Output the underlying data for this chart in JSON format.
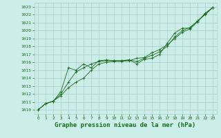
{
  "bg_color": "#cceee8",
  "grid_color": "#aacccc",
  "line_color": "#1a6b1a",
  "marker_color": "#1a6b1a",
  "title": "Graphe pression niveau de la mer (hPa)",
  "title_fontsize": 6.5,
  "xlim": [
    -0.5,
    23.5
  ],
  "ylim": [
    1009.5,
    1023.5
  ],
  "xticks": [
    0,
    1,
    2,
    3,
    4,
    5,
    6,
    7,
    8,
    9,
    10,
    11,
    12,
    13,
    14,
    15,
    16,
    17,
    18,
    19,
    20,
    21,
    22,
    23
  ],
  "yticks": [
    1010,
    1011,
    1012,
    1013,
    1014,
    1015,
    1016,
    1017,
    1018,
    1019,
    1020,
    1021,
    1022,
    1023
  ],
  "series": [
    [
      1010.0,
      1010.8,
      1011.1,
      1011.8,
      1012.8,
      1013.5,
      1014.0,
      1015.0,
      1015.8,
      1016.0,
      1016.1,
      1016.1,
      1016.2,
      1016.5,
      1016.6,
      1017.2,
      1017.6,
      1018.2,
      1019.0,
      1019.8,
      1020.2,
      1021.1,
      1022.2,
      1022.9
    ],
    [
      1010.0,
      1010.8,
      1011.1,
      1012.0,
      1013.5,
      1014.8,
      1015.3,
      1015.8,
      1016.1,
      1016.2,
      1016.2,
      1016.2,
      1016.3,
      1016.1,
      1016.5,
      1016.9,
      1017.3,
      1018.0,
      1019.2,
      1020.0,
      1020.4,
      1021.2,
      1022.0,
      1022.9
    ],
    [
      1010.0,
      1010.8,
      1011.1,
      1012.3,
      1015.3,
      1015.0,
      1015.8,
      1015.3,
      1016.2,
      1016.3,
      1016.2,
      1016.2,
      1016.3,
      1015.8,
      1016.4,
      1016.5,
      1017.0,
      1018.4,
      1019.7,
      1020.3,
      1020.3,
      1021.2,
      1022.1,
      1022.9
    ]
  ]
}
